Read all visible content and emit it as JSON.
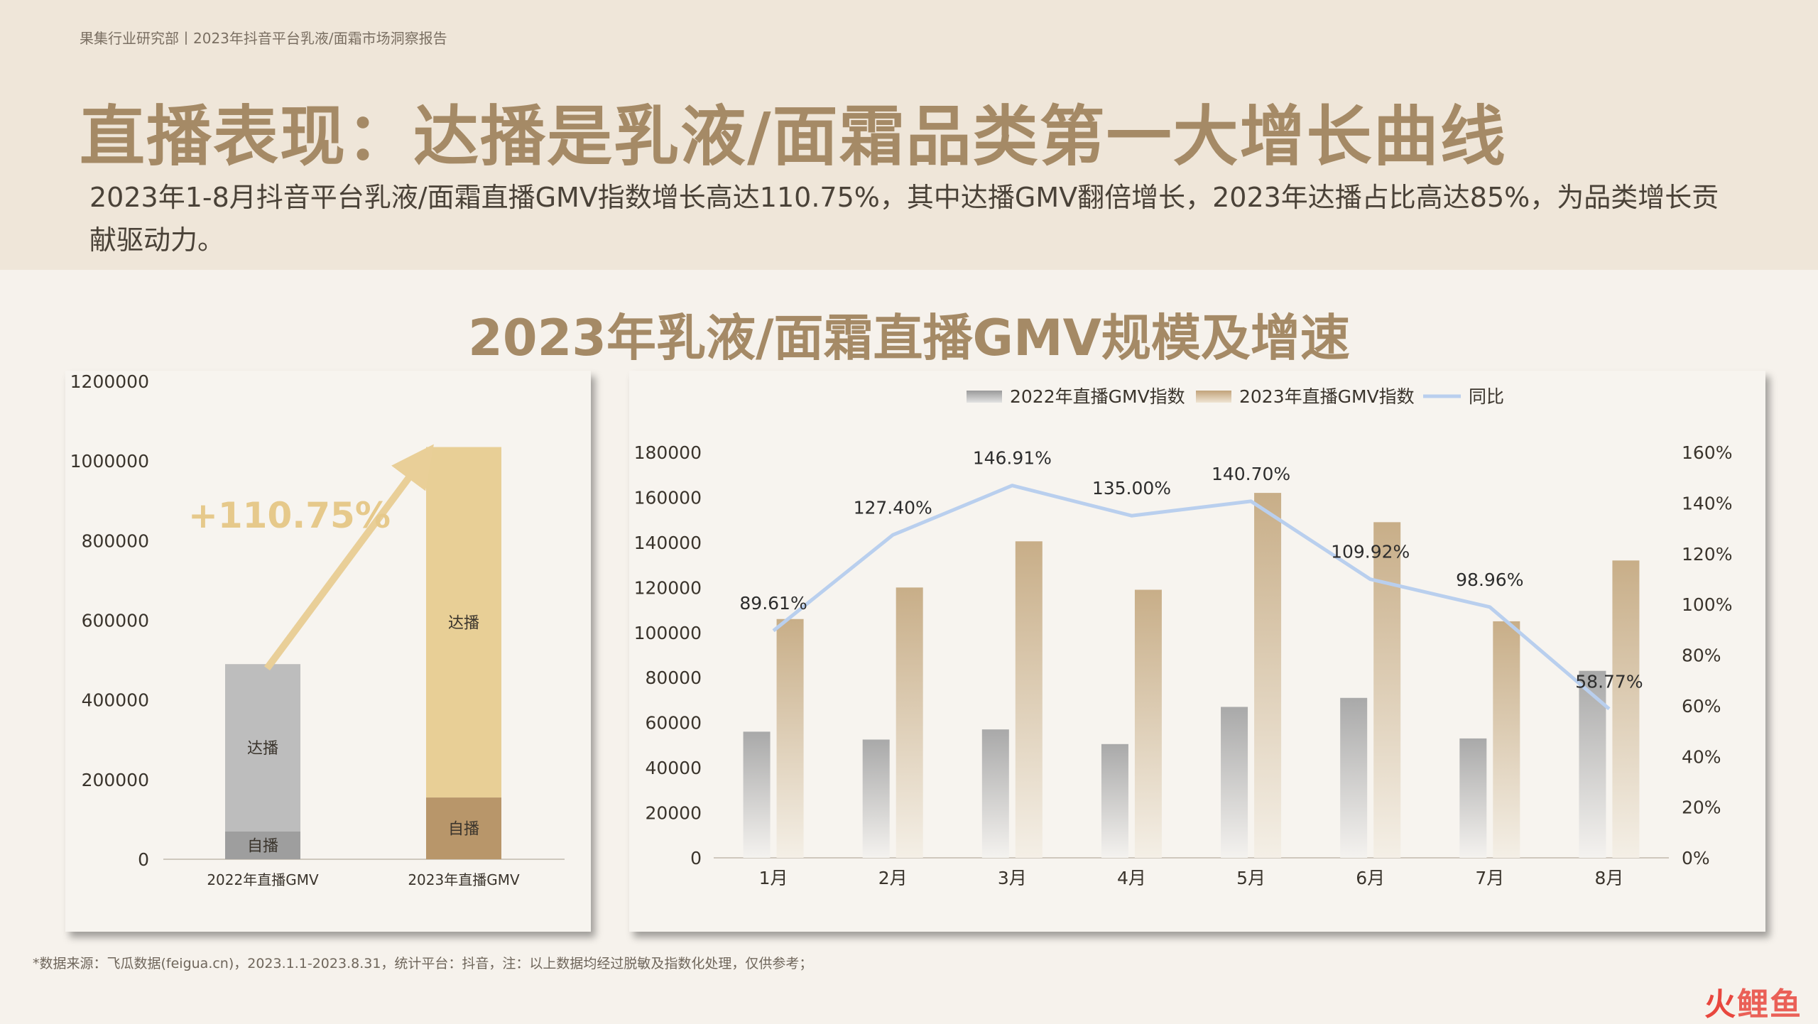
{
  "header": {
    "breadcrumb": "果集行业研究部丨2023年抖音平台乳液/面霜市场洞察报告",
    "title": "直播表现：达播是乳液/面霜品类第一大增长曲线",
    "subtitle": "2023年1-8月抖音平台乳液/面霜直播GMV指数增长高达110.75%，其中达播GMV翻倍增长，2023年达播占比高达85%，为品类增长贡献驱动力。"
  },
  "chart_title": "2023年乳液/面霜直播GMV规模及增速",
  "footnote": "*数据来源：飞瓜数据(feigua.cn)，2023.1.1-2023.8.31，统计平台：抖音，注：以上数据均经过脱敏及指数化处理，仅供参考；",
  "watermark": "火鲤鱼",
  "colors": {
    "title": "#a58a66",
    "header_bg": "#efe6d9",
    "bg": "#f6f2ec",
    "gray_bar": "#bdbdbd",
    "gray_self": "#9e9e9e",
    "gold_bar": "#e8cf96",
    "gold_self": "#b8966a",
    "tan_bar": "#cdb694",
    "line": "#b9cfee",
    "growth_label": "#e6c98b"
  },
  "chart_data": [
    {
      "type": "bar",
      "stacked": true,
      "categories": [
        "2022年直播GMV",
        "2023年直播GMV"
      ],
      "series": [
        {
          "name": "自播",
          "values": [
            70000,
            155000
          ]
        },
        {
          "name": "达播",
          "values": [
            420000,
            880000
          ]
        }
      ],
      "ylim": [
        0,
        1200000
      ],
      "yticks": [
        "0",
        "200000",
        "400000",
        "600000",
        "800000",
        "1000000",
        "1200000"
      ],
      "annotation": "+110.75%",
      "legend": "none",
      "grid": false
    },
    {
      "type": "bar+line",
      "categories": [
        "1月",
        "2月",
        "3月",
        "4月",
        "5月",
        "6月",
        "7月",
        "8月"
      ],
      "series": [
        {
          "name": "2022年直播GMV指数",
          "type": "bar",
          "axis": "left",
          "values": [
            56000,
            52500,
            57000,
            50500,
            67000,
            71000,
            53000,
            83000
          ]
        },
        {
          "name": "2023年直播GMV指数",
          "type": "bar",
          "axis": "left",
          "values": [
            106000,
            120000,
            140500,
            119000,
            162000,
            149000,
            105000,
            132000
          ]
        },
        {
          "name": "同比",
          "type": "line",
          "axis": "right",
          "values": [
            89.61,
            127.4,
            146.91,
            135.0,
            140.7,
            109.92,
            98.96,
            58.77
          ],
          "labels": [
            "89.61%",
            "127.40%",
            "146.91%",
            "135.00%",
            "140.70%",
            "109.92%",
            "98.96%",
            "58.77%"
          ]
        }
      ],
      "ylim_left": [
        0,
        180000
      ],
      "yticks_left": [
        "0",
        "20000",
        "40000",
        "60000",
        "80000",
        "100000",
        "120000",
        "140000",
        "160000",
        "180000"
      ],
      "ylim_right": [
        0,
        160
      ],
      "yticks_right": [
        "0%",
        "20%",
        "40%",
        "60%",
        "80%",
        "100%",
        "120%",
        "140%",
        "160%"
      ],
      "legend": "top-center",
      "grid": false
    }
  ]
}
